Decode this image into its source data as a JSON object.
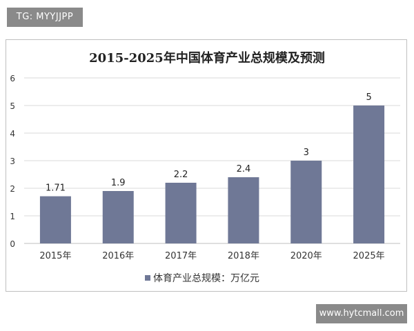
{
  "watermarks": {
    "top_left": "TG: MYYJJPP",
    "bottom_right": "www.hytcmall.com"
  },
  "chart_data": {
    "type": "bar",
    "title": "2015-2025年中国体育产业总规模及预测",
    "categories": [
      "2015年",
      "2016年",
      "2017年",
      "2018年",
      "2020年",
      "2025年"
    ],
    "series": [
      {
        "name": "体育产业总规模：万亿元",
        "values": [
          1.71,
          1.9,
          2.2,
          2.4,
          3,
          5
        ],
        "labels": [
          "1.71",
          "1.9",
          "2.2",
          "2.4",
          "3",
          "5"
        ]
      }
    ],
    "yticks": [
      "0",
      "1",
      "2",
      "3",
      "4",
      "5",
      "6"
    ],
    "ylim": [
      0,
      6
    ],
    "grid": true,
    "legend_position": "bottom",
    "bar_color": "#6f7896"
  }
}
